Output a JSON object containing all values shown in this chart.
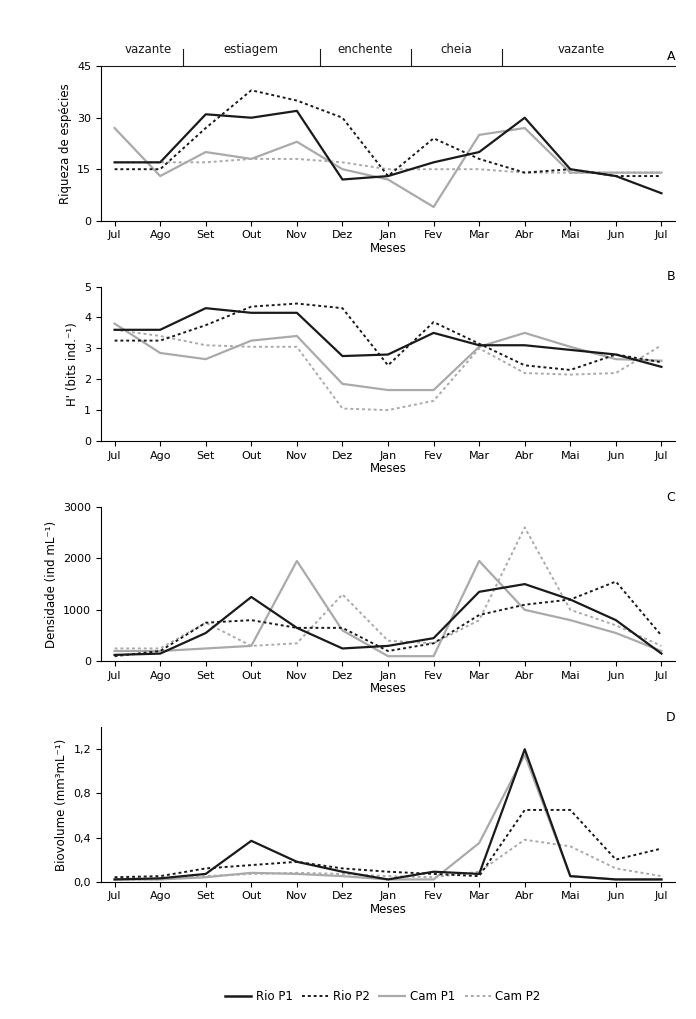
{
  "months": [
    "Jul",
    "Ago",
    "Set",
    "Out",
    "Nov",
    "Dez",
    "Jan",
    "Fev",
    "Mar",
    "Abr",
    "Mai",
    "Jun",
    "Jul"
  ],
  "seasons": {
    "labels": [
      "vazante",
      "estiagem",
      "enchente",
      "cheia",
      "vazante"
    ],
    "boundaries": [
      1.5,
      4.5,
      6.5,
      8.5
    ],
    "midpoints": [
      0.75,
      3.0,
      5.5,
      7.5,
      10.25
    ]
  },
  "panel_A": {
    "ylabel": "Riqueza de espécies",
    "ylim": [
      0,
      45
    ],
    "yticks": [
      0,
      15,
      30,
      45
    ],
    "label": "A",
    "rio_p1": [
      17,
      17,
      31,
      30,
      32,
      12,
      13,
      17,
      20,
      30,
      15,
      13,
      8
    ],
    "rio_p2": [
      15,
      15,
      27,
      38,
      35,
      30,
      13,
      24,
      18,
      14,
      15,
      13,
      13
    ],
    "cam_p1": [
      27,
      13,
      20,
      18,
      23,
      15,
      12,
      4,
      25,
      27,
      14,
      14,
      14
    ],
    "cam_p2": [
      17,
      17,
      17,
      18,
      18,
      17,
      15,
      15,
      15,
      14,
      14,
      14,
      14
    ]
  },
  "panel_B": {
    "ylabel": "H' (bits ind.⁻¹)",
    "ylim": [
      0,
      5
    ],
    "yticks": [
      0,
      1,
      2,
      3,
      4,
      5
    ],
    "label": "B",
    "rio_p1": [
      3.6,
      3.6,
      4.3,
      4.15,
      4.15,
      2.75,
      2.8,
      3.5,
      3.1,
      3.1,
      2.95,
      2.8,
      2.4
    ],
    "rio_p2": [
      3.25,
      3.25,
      3.75,
      4.35,
      4.45,
      4.3,
      2.45,
      3.85,
      3.15,
      2.45,
      2.3,
      2.8,
      2.55
    ],
    "cam_p1": [
      3.8,
      2.85,
      2.65,
      3.25,
      3.4,
      1.85,
      1.65,
      1.65,
      3.05,
      3.5,
      3.05,
      2.65,
      2.6
    ],
    "cam_p2": [
      3.6,
      3.4,
      3.1,
      3.05,
      3.05,
      1.05,
      1.0,
      1.3,
      3.0,
      2.2,
      2.15,
      2.2,
      3.1
    ]
  },
  "panel_C": {
    "ylabel": "Densidade (ind mL⁻¹)",
    "ylim": [
      0,
      3000
    ],
    "yticks": [
      0,
      1000,
      2000,
      3000
    ],
    "label": "C",
    "rio_p1": [
      125,
      150,
      550,
      1250,
      650,
      250,
      300,
      450,
      1350,
      1500,
      1200,
      800,
      150
    ],
    "rio_p2": [
      100,
      200,
      750,
      800,
      650,
      650,
      200,
      350,
      900,
      1100,
      1200,
      1550,
      500
    ],
    "cam_p1": [
      200,
      200,
      250,
      300,
      1950,
      600,
      100,
      100,
      1950,
      1000,
      800,
      550,
      200
    ],
    "cam_p2": [
      250,
      250,
      750,
      300,
      350,
      1300,
      400,
      350,
      800,
      2600,
      1000,
      700,
      300
    ]
  },
  "panel_D": {
    "ylabel": "Biovolume (mm³mL⁻¹)",
    "ylim": [
      0,
      1.4
    ],
    "yticks": [
      0.0,
      0.4,
      0.8,
      1.2
    ],
    "ytick_labels": [
      "0,0",
      "0,4",
      "0,8",
      "1,2"
    ],
    "label": "D",
    "rio_p1": [
      0.02,
      0.03,
      0.07,
      0.37,
      0.18,
      0.09,
      0.02,
      0.09,
      0.07,
      1.2,
      0.05,
      0.02,
      0.02
    ],
    "rio_p2": [
      0.04,
      0.05,
      0.12,
      0.15,
      0.18,
      0.12,
      0.09,
      0.07,
      0.05,
      0.65,
      0.65,
      0.2,
      0.3
    ],
    "cam_p1": [
      0.02,
      0.02,
      0.04,
      0.08,
      0.07,
      0.05,
      0.02,
      0.02,
      0.35,
      1.15,
      0.05,
      0.02,
      0.02
    ],
    "cam_p2": [
      0.02,
      0.02,
      0.05,
      0.07,
      0.08,
      0.07,
      0.05,
      0.04,
      0.09,
      0.38,
      0.32,
      0.12,
      0.05
    ]
  },
  "legend": {
    "rio_p1_label": "Rio P1",
    "rio_p2_label": "Rio P2",
    "cam_p1_label": "Cam P1",
    "cam_p2_label": "Cam P2"
  },
  "colors": {
    "black": "#1a1a1a",
    "gray": "#aaaaaa"
  }
}
